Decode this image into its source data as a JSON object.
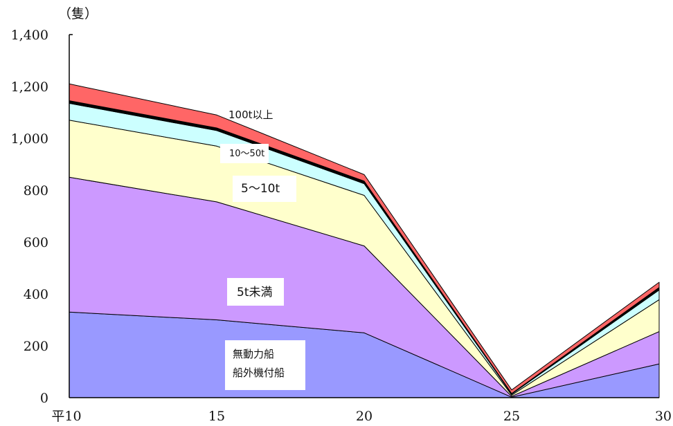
{
  "chart_data": {
    "type": "area",
    "stacked": true,
    "unit_label": "（隻）",
    "x": [
      "平10",
      "15",
      "20",
      "25",
      "30"
    ],
    "ylim": [
      0,
      1400
    ],
    "yticks": [
      0,
      200,
      400,
      600,
      800,
      1000,
      1200,
      1400
    ],
    "ytick_labels": [
      "0",
      "200",
      "400",
      "600",
      "800",
      "1,000",
      "1,200",
      "1,400"
    ],
    "grid": false,
    "series": [
      {
        "name": "無動力船\n船外機付船",
        "name_lines": [
          "無動力船",
          "船外機付船"
        ],
        "color": "#9999ff",
        "values": [
          330,
          300,
          250,
          2,
          130
        ]
      },
      {
        "name": "5t未満",
        "color": "#cc99ff",
        "values": [
          520,
          455,
          335,
          3,
          125
        ]
      },
      {
        "name": "5～10t",
        "color": "#ffffcc",
        "values": [
          220,
          215,
          195,
          5,
          123
        ]
      },
      {
        "name": "10～50t",
        "color": "#ccffff",
        "values": [
          65,
          60,
          45,
          4,
          37
        ]
      },
      {
        "name": "",
        "color": "#000000",
        "values": [
          10,
          10,
          10,
          2,
          10
        ]
      },
      {
        "name": "100t以上",
        "color": "#ff6666",
        "values": [
          65,
          50,
          25,
          14,
          20
        ]
      }
    ]
  }
}
